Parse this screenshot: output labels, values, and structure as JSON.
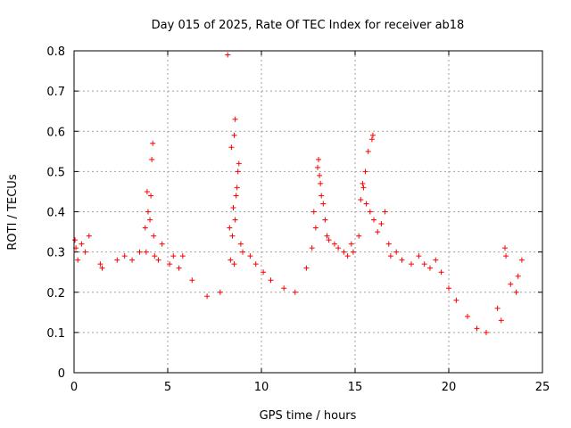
{
  "chart_data": {
    "type": "scatter",
    "title": "Day 015 of 2025, Rate Of TEC Index for receiver ab18",
    "xlabel": "GPS time / hours",
    "ylabel": "ROTI / TECUs",
    "xlim": [
      0,
      25
    ],
    "ylim": [
      0,
      0.8
    ],
    "xticks": [
      0,
      5,
      10,
      15,
      20,
      25
    ],
    "xtick_labels": [
      "0",
      "5",
      "10",
      "15",
      "20",
      "25"
    ],
    "yticks": [
      0,
      0.1,
      0.2,
      0.3,
      0.4,
      0.5,
      0.6,
      0.7,
      0.8
    ],
    "ytick_labels": [
      "0",
      "0.1",
      "0.2",
      "0.3",
      "0.4",
      "0.5",
      "0.6",
      "0.7",
      "0.8"
    ],
    "grid": true,
    "marker": "+",
    "color": "#ff0000",
    "series": [
      {
        "name": "ROTI",
        "points": [
          [
            8.2,
            0.79
          ],
          [
            8.6,
            0.63
          ],
          [
            8.55,
            0.59
          ],
          [
            8.4,
            0.56
          ],
          [
            8.8,
            0.52
          ],
          [
            8.75,
            0.5
          ],
          [
            8.7,
            0.46
          ],
          [
            8.65,
            0.44
          ],
          [
            8.5,
            0.41
          ],
          [
            8.6,
            0.38
          ],
          [
            8.3,
            0.36
          ],
          [
            8.45,
            0.34
          ],
          [
            8.9,
            0.32
          ],
          [
            9.0,
            0.3
          ],
          [
            8.35,
            0.28
          ],
          [
            8.55,
            0.27
          ],
          [
            4.2,
            0.57
          ],
          [
            4.15,
            0.53
          ],
          [
            3.9,
            0.45
          ],
          [
            4.1,
            0.44
          ],
          [
            3.95,
            0.4
          ],
          [
            4.05,
            0.38
          ],
          [
            3.8,
            0.36
          ],
          [
            4.25,
            0.34
          ],
          [
            4.7,
            0.32
          ],
          [
            3.85,
            0.3
          ],
          [
            4.3,
            0.29
          ],
          [
            4.5,
            0.28
          ],
          [
            15.95,
            0.59
          ],
          [
            15.9,
            0.58
          ],
          [
            15.7,
            0.55
          ],
          [
            15.55,
            0.5
          ],
          [
            15.4,
            0.47
          ],
          [
            15.45,
            0.46
          ],
          [
            15.3,
            0.43
          ],
          [
            15.6,
            0.42
          ],
          [
            15.8,
            0.4
          ],
          [
            16.0,
            0.38
          ],
          [
            16.6,
            0.4
          ],
          [
            16.4,
            0.37
          ],
          [
            16.2,
            0.35
          ],
          [
            15.2,
            0.34
          ],
          [
            16.8,
            0.32
          ],
          [
            17.2,
            0.3
          ],
          [
            16.9,
            0.29
          ],
          [
            13.05,
            0.53
          ],
          [
            13.0,
            0.51
          ],
          [
            13.1,
            0.49
          ],
          [
            13.15,
            0.47
          ],
          [
            13.2,
            0.44
          ],
          [
            13.3,
            0.42
          ],
          [
            12.8,
            0.4
          ],
          [
            13.4,
            0.38
          ],
          [
            12.9,
            0.36
          ],
          [
            13.5,
            0.34
          ],
          [
            13.6,
            0.33
          ],
          [
            13.9,
            0.32
          ],
          [
            14.1,
            0.31
          ],
          [
            14.4,
            0.3
          ],
          [
            14.6,
            0.29
          ],
          [
            14.8,
            0.32
          ],
          [
            14.9,
            0.3
          ],
          [
            12.7,
            0.31
          ],
          [
            0.05,
            0.33
          ],
          [
            0.1,
            0.31
          ],
          [
            0.2,
            0.28
          ],
          [
            0.4,
            0.32
          ],
          [
            0.8,
            0.34
          ],
          [
            0.6,
            0.3
          ],
          [
            1.4,
            0.27
          ],
          [
            1.5,
            0.26
          ],
          [
            2.3,
            0.28
          ],
          [
            2.7,
            0.29
          ],
          [
            3.1,
            0.28
          ],
          [
            3.5,
            0.3
          ],
          [
            5.1,
            0.27
          ],
          [
            5.6,
            0.26
          ],
          [
            5.3,
            0.29
          ],
          [
            5.8,
            0.29
          ],
          [
            6.3,
            0.23
          ],
          [
            7.1,
            0.19
          ],
          [
            7.8,
            0.2
          ],
          [
            9.4,
            0.29
          ],
          [
            9.7,
            0.27
          ],
          [
            10.1,
            0.25
          ],
          [
            10.5,
            0.23
          ],
          [
            11.2,
            0.21
          ],
          [
            11.8,
            0.2
          ],
          [
            12.4,
            0.26
          ],
          [
            17.5,
            0.28
          ],
          [
            18.0,
            0.27
          ],
          [
            18.4,
            0.29
          ],
          [
            18.7,
            0.27
          ],
          [
            19.0,
            0.26
          ],
          [
            19.3,
            0.28
          ],
          [
            19.6,
            0.25
          ],
          [
            20.0,
            0.21
          ],
          [
            20.4,
            0.18
          ],
          [
            21.0,
            0.14
          ],
          [
            21.5,
            0.11
          ],
          [
            22.0,
            0.1
          ],
          [
            22.6,
            0.16
          ],
          [
            23.0,
            0.31
          ],
          [
            23.05,
            0.29
          ],
          [
            23.3,
            0.22
          ],
          [
            23.6,
            0.2
          ],
          [
            23.9,
            0.28
          ],
          [
            23.7,
            0.24
          ],
          [
            22.8,
            0.13
          ]
        ]
      }
    ]
  }
}
